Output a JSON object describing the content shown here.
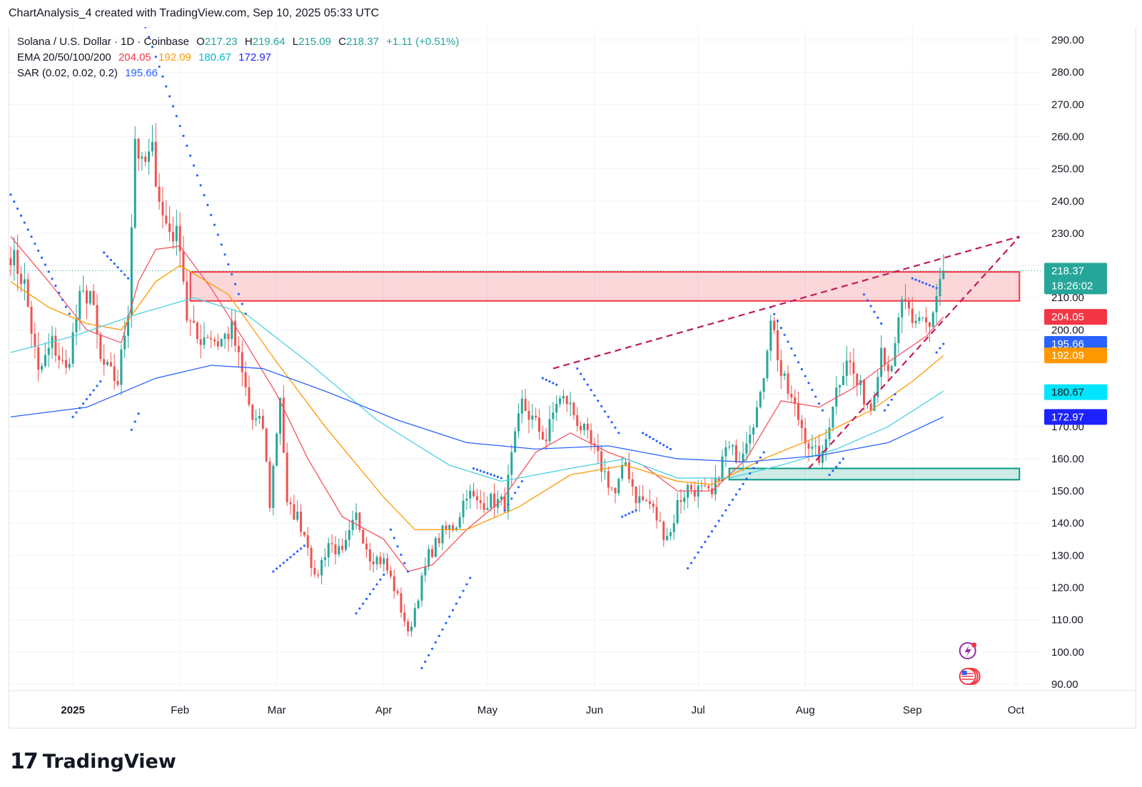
{
  "header": {
    "attribution": "ChartAnalysis_4 created with TradingView.com, Sep 10, 2025 05:33 UTC"
  },
  "legend": {
    "symbol": "Solana / U.S. Dollar · 1D · Coinbase",
    "open_label": "O",
    "open": "217.23",
    "high_label": "H",
    "high": "219.64",
    "low_label": "L",
    "low": "215.09",
    "close_label": "C",
    "close": "218.37",
    "change": "+1.11 (+0.51%)",
    "ema_label": "EMA 20/50/100/200",
    "ema20": "204.05",
    "ema50": "192.09",
    "ema100": "180.67",
    "ema200": "172.97",
    "sar_label": "SAR (0.02, 0.02, 0.2)",
    "sar": "195.66"
  },
  "colors": {
    "up": "#26a69a",
    "down": "#ef5350",
    "ema20": "#f7525f",
    "ema50": "#ff9800",
    "ema100": "#4dd0e1",
    "ema200": "#2962ff",
    "sar": "#2962ff",
    "trendline": "#c2185b",
    "resistance": "#f23645",
    "support": "#089981"
  },
  "brand": {
    "logo": "17",
    "name": "TradingView"
  },
  "chart_data": {
    "type": "candlestick",
    "title": "Solana / U.S. Dollar · 1D · Coinbase",
    "x_start": "2024-12-14",
    "ylim": [
      88,
      294
    ],
    "y_ticks": [
      "290.00",
      "280.00",
      "270.00",
      "260.00",
      "250.00",
      "240.00",
      "230.00",
      "210.00",
      "200.00",
      "170.00",
      "160.00",
      "150.00",
      "140.00",
      "130.00",
      "120.00",
      "110.00",
      "100.00",
      "90.00"
    ],
    "x_ticks": [
      {
        "date": "2025-01-01",
        "label": "2025",
        "bold": true
      },
      {
        "date": "2025-02-01",
        "label": "Feb"
      },
      {
        "date": "2025-03-01",
        "label": "Mar"
      },
      {
        "date": "2025-04-01",
        "label": "Apr"
      },
      {
        "date": "2025-05-01",
        "label": "May"
      },
      {
        "date": "2025-06-01",
        "label": "Jun"
      },
      {
        "date": "2025-07-01",
        "label": "Jul"
      },
      {
        "date": "2025-08-01",
        "label": "Aug"
      },
      {
        "date": "2025-09-01",
        "label": "Sep"
      },
      {
        "date": "2025-10-01",
        "label": "Oct"
      }
    ],
    "price_labels": [
      {
        "name": "price",
        "value": 218.37,
        "text": "218.37",
        "sub": "18:26:02",
        "color": "#26a69a"
      },
      {
        "name": "ema20",
        "value": 204.05,
        "text": "204.05",
        "color": "#f23645"
      },
      {
        "name": "sar",
        "value": 195.66,
        "text": "195.66",
        "color": "#2962ff"
      },
      {
        "name": "ema50",
        "value": 192.09,
        "text": "192.09",
        "color": "#ff9800"
      },
      {
        "name": "ema100",
        "value": 180.67,
        "text": "180.67",
        "color": "#00e5ff"
      },
      {
        "name": "ema200",
        "value": 172.97,
        "text": "172.97",
        "color": "#1e22ff"
      }
    ],
    "resistance_zone": {
      "x0": "2025-02-04",
      "x1": "2025-10-02",
      "low": 209,
      "high": 218
    },
    "support_zone": {
      "x0": "2025-07-10",
      "x1": "2025-10-02",
      "low": 153.5,
      "high": 157
    },
    "trendlines": [
      {
        "x0": "2025-05-20",
        "y0": 188,
        "x1": "2025-10-02",
        "y1": 229
      },
      {
        "x0": "2025-08-02",
        "y0": 157,
        "x1": "2025-10-02",
        "y1": 229
      }
    ],
    "series": [
      {
        "name": "EMA 20",
        "color": "#f7525f",
        "points": [
          [
            "2024-12-14",
            229
          ],
          [
            "2024-12-25",
            215
          ],
          [
            "2025-01-05",
            200
          ],
          [
            "2025-01-15",
            196
          ],
          [
            "2025-01-20",
            215
          ],
          [
            "2025-01-25",
            225
          ],
          [
            "2025-02-01",
            226
          ],
          [
            "2025-02-10",
            213
          ],
          [
            "2025-02-20",
            196
          ],
          [
            "2025-03-01",
            180
          ],
          [
            "2025-03-10",
            160
          ],
          [
            "2025-03-20",
            142
          ],
          [
            "2025-04-01",
            135
          ],
          [
            "2025-04-08",
            125
          ],
          [
            "2025-04-15",
            127
          ],
          [
            "2025-04-25",
            138
          ],
          [
            "2025-05-05",
            147
          ],
          [
            "2025-05-15",
            162
          ],
          [
            "2025-05-25",
            168
          ],
          [
            "2025-06-05",
            162
          ],
          [
            "2025-06-15",
            158
          ],
          [
            "2025-06-25",
            150
          ],
          [
            "2025-07-05",
            150
          ],
          [
            "2025-07-15",
            160
          ],
          [
            "2025-07-25",
            178
          ],
          [
            "2025-08-05",
            176
          ],
          [
            "2025-08-15",
            182
          ],
          [
            "2025-08-25",
            190
          ],
          [
            "2025-09-05",
            198
          ],
          [
            "2025-09-10",
            204
          ]
        ]
      },
      {
        "name": "EMA 50",
        "color": "#ff9800",
        "points": [
          [
            "2024-12-14",
            215
          ],
          [
            "2024-12-25",
            207
          ],
          [
            "2025-01-05",
            202
          ],
          [
            "2025-01-15",
            200
          ],
          [
            "2025-01-25",
            215
          ],
          [
            "2025-02-01",
            220
          ],
          [
            "2025-02-15",
            211
          ],
          [
            "2025-03-01",
            190
          ],
          [
            "2025-03-15",
            170
          ],
          [
            "2025-04-01",
            148
          ],
          [
            "2025-04-10",
            138
          ],
          [
            "2025-04-25",
            138
          ],
          [
            "2025-05-10",
            145
          ],
          [
            "2025-05-25",
            155
          ],
          [
            "2025-06-10",
            158
          ],
          [
            "2025-06-25",
            153
          ],
          [
            "2025-07-05",
            152
          ],
          [
            "2025-07-20",
            160
          ],
          [
            "2025-08-05",
            167
          ],
          [
            "2025-08-20",
            175
          ],
          [
            "2025-09-01",
            184
          ],
          [
            "2025-09-10",
            192
          ]
        ]
      },
      {
        "name": "EMA 100",
        "color": "#4dd0e1",
        "points": [
          [
            "2024-12-14",
            193
          ],
          [
            "2025-01-01",
            198
          ],
          [
            "2025-01-20",
            205
          ],
          [
            "2025-02-05",
            210
          ],
          [
            "2025-02-20",
            205
          ],
          [
            "2025-03-10",
            190
          ],
          [
            "2025-03-30",
            172
          ],
          [
            "2025-04-20",
            158
          ],
          [
            "2025-05-05",
            153
          ],
          [
            "2025-05-25",
            157
          ],
          [
            "2025-06-10",
            160
          ],
          [
            "2025-06-25",
            154
          ],
          [
            "2025-07-10",
            154
          ],
          [
            "2025-07-25",
            158
          ],
          [
            "2025-08-10",
            163
          ],
          [
            "2025-08-25",
            170
          ],
          [
            "2025-09-10",
            181
          ]
        ]
      },
      {
        "name": "EMA 200",
        "color": "#2962ff",
        "points": [
          [
            "2024-12-14",
            173
          ],
          [
            "2025-01-05",
            176
          ],
          [
            "2025-01-25",
            185
          ],
          [
            "2025-02-10",
            189
          ],
          [
            "2025-02-25",
            188
          ],
          [
            "2025-03-15",
            181
          ],
          [
            "2025-04-05",
            172
          ],
          [
            "2025-04-25",
            165
          ],
          [
            "2025-05-15",
            163
          ],
          [
            "2025-06-05",
            164
          ],
          [
            "2025-06-25",
            160
          ],
          [
            "2025-07-15",
            159
          ],
          [
            "2025-08-05",
            161
          ],
          [
            "2025-08-25",
            165
          ],
          [
            "2025-09-10",
            173
          ]
        ]
      }
    ],
    "sar_segments": [
      {
        "x0": "2024-12-14",
        "y0": 242,
        "x1": "2024-12-31",
        "y1": 205
      },
      {
        "x0": "2025-01-01",
        "y0": 173,
        "x1": "2025-01-09",
        "y1": 184
      },
      {
        "x0": "2025-01-10",
        "y0": 224,
        "x1": "2025-01-17",
        "y1": 216
      },
      {
        "x0": "2025-01-18",
        "y0": 169,
        "x1": "2025-01-20",
        "y1": 174
      },
      {
        "x0": "2025-01-22",
        "y0": 294,
        "x1": "2025-02-20",
        "y1": 205
      },
      {
        "x0": "2025-02-28",
        "y0": 125,
        "x1": "2025-03-09",
        "y1": 133
      },
      {
        "x0": "2025-03-24",
        "y0": 112,
        "x1": "2025-04-01",
        "y1": 124
      },
      {
        "x0": "2025-04-03",
        "y0": 138,
        "x1": "2025-04-08",
        "y1": 125
      },
      {
        "x0": "2025-04-12",
        "y0": 95,
        "x1": "2025-04-26",
        "y1": 123
      },
      {
        "x0": "2025-04-27",
        "y0": 157,
        "x1": "2025-05-05",
        "y1": 154
      },
      {
        "x0": "2025-05-06",
        "y0": 144,
        "x1": "2025-05-11",
        "y1": 153
      },
      {
        "x0": "2025-05-17",
        "y0": 185,
        "x1": "2025-05-21",
        "y1": 183
      },
      {
        "x0": "2025-05-27",
        "y0": 188,
        "x1": "2025-06-08",
        "y1": 168
      },
      {
        "x0": "2025-06-09",
        "y0": 142,
        "x1": "2025-06-13",
        "y1": 144
      },
      {
        "x0": "2025-06-15",
        "y0": 168,
        "x1": "2025-06-23",
        "y1": 163
      },
      {
        "x0": "2025-06-28",
        "y0": 126,
        "x1": "2025-07-20",
        "y1": 162
      },
      {
        "x0": "2025-07-22",
        "y0": 207,
        "x1": "2025-08-06",
        "y1": 175
      },
      {
        "x0": "2025-08-08",
        "y0": 155,
        "x1": "2025-08-12",
        "y1": 160
      },
      {
        "x0": "2025-08-18",
        "y0": 211,
        "x1": "2025-08-23",
        "y1": 202
      },
      {
        "x0": "2025-08-24",
        "y0": 175,
        "x1": "2025-08-27",
        "y1": 180
      },
      {
        "x0": "2025-09-01",
        "y0": 216,
        "x1": "2025-09-08",
        "y1": 213
      },
      {
        "x0": "2025-09-08",
        "y0": 193,
        "x1": "2025-09-10",
        "y1": 195.66
      }
    ],
    "anchors": [
      [
        "2024-12-14",
        224
      ],
      [
        "2024-12-18",
        214
      ],
      [
        "2024-12-22",
        186
      ],
      [
        "2024-12-26",
        196
      ],
      [
        "2024-12-30",
        187
      ],
      [
        "2025-01-03",
        209
      ],
      [
        "2025-01-06",
        212
      ],
      [
        "2025-01-09",
        190
      ],
      [
        "2025-01-12",
        186
      ],
      [
        "2025-01-14",
        184
      ],
      [
        "2025-01-17",
        207
      ],
      [
        "2025-01-19",
        260
      ],
      [
        "2025-01-21",
        250
      ],
      [
        "2025-01-24",
        255
      ],
      [
        "2025-01-27",
        235
      ],
      [
        "2025-01-29",
        231
      ],
      [
        "2025-02-01",
        228
      ],
      [
        "2025-02-03",
        204
      ],
      [
        "2025-02-06",
        197
      ],
      [
        "2025-02-09",
        199
      ],
      [
        "2025-02-12",
        196
      ],
      [
        "2025-02-16",
        200
      ],
      [
        "2025-02-19",
        186
      ],
      [
        "2025-02-22",
        172
      ],
      [
        "2025-02-25",
        170
      ],
      [
        "2025-02-27",
        146
      ],
      [
        "2025-03-02",
        180
      ],
      [
        "2025-03-04",
        145
      ],
      [
        "2025-03-07",
        142
      ],
      [
        "2025-03-10",
        134
      ],
      [
        "2025-03-12",
        122
      ],
      [
        "2025-03-16",
        134
      ],
      [
        "2025-03-20",
        130
      ],
      [
        "2025-03-24",
        142
      ],
      [
        "2025-03-28",
        130
      ],
      [
        "2025-04-01",
        128
      ],
      [
        "2025-04-04",
        120
      ],
      [
        "2025-04-07",
        110
      ],
      [
        "2025-04-08",
        105
      ],
      [
        "2025-04-11",
        118
      ],
      [
        "2025-04-14",
        130
      ],
      [
        "2025-04-18",
        137
      ],
      [
        "2025-04-22",
        140
      ],
      [
        "2025-04-25",
        150
      ],
      [
        "2025-04-28",
        146
      ],
      [
        "2025-05-02",
        147
      ],
      [
        "2025-05-06",
        146
      ],
      [
        "2025-05-08",
        160
      ],
      [
        "2025-05-11",
        177
      ],
      [
        "2025-05-14",
        172
      ],
      [
        "2025-05-18",
        166
      ],
      [
        "2025-05-21",
        178
      ],
      [
        "2025-05-24",
        178
      ],
      [
        "2025-05-28",
        170
      ],
      [
        "2025-06-02",
        160
      ],
      [
        "2025-06-05",
        153
      ],
      [
        "2025-06-07",
        149
      ],
      [
        "2025-06-10",
        159
      ],
      [
        "2025-06-13",
        148
      ],
      [
        "2025-06-17",
        146
      ],
      [
        "2025-06-21",
        137
      ],
      [
        "2025-06-23",
        137
      ],
      [
        "2025-06-25",
        146
      ],
      [
        "2025-06-28",
        151
      ],
      [
        "2025-07-02",
        150
      ],
      [
        "2025-07-05",
        148
      ],
      [
        "2025-07-09",
        163
      ],
      [
        "2025-07-13",
        161
      ],
      [
        "2025-07-16",
        170
      ],
      [
        "2025-07-19",
        178
      ],
      [
        "2025-07-22",
        205
      ],
      [
        "2025-07-25",
        186
      ],
      [
        "2025-07-28",
        178
      ],
      [
        "2025-07-31",
        170
      ],
      [
        "2025-08-03",
        162
      ],
      [
        "2025-08-06",
        160
      ],
      [
        "2025-08-09",
        178
      ],
      [
        "2025-08-13",
        192
      ],
      [
        "2025-08-16",
        183
      ],
      [
        "2025-08-20",
        176
      ],
      [
        "2025-08-23",
        195
      ],
      [
        "2025-08-26",
        186
      ],
      [
        "2025-08-29",
        210
      ],
      [
        "2025-09-01",
        200
      ],
      [
        "2025-09-04",
        205
      ],
      [
        "2025-09-06",
        201
      ],
      [
        "2025-09-08",
        210
      ],
      [
        "2025-09-10",
        218.37
      ]
    ]
  }
}
